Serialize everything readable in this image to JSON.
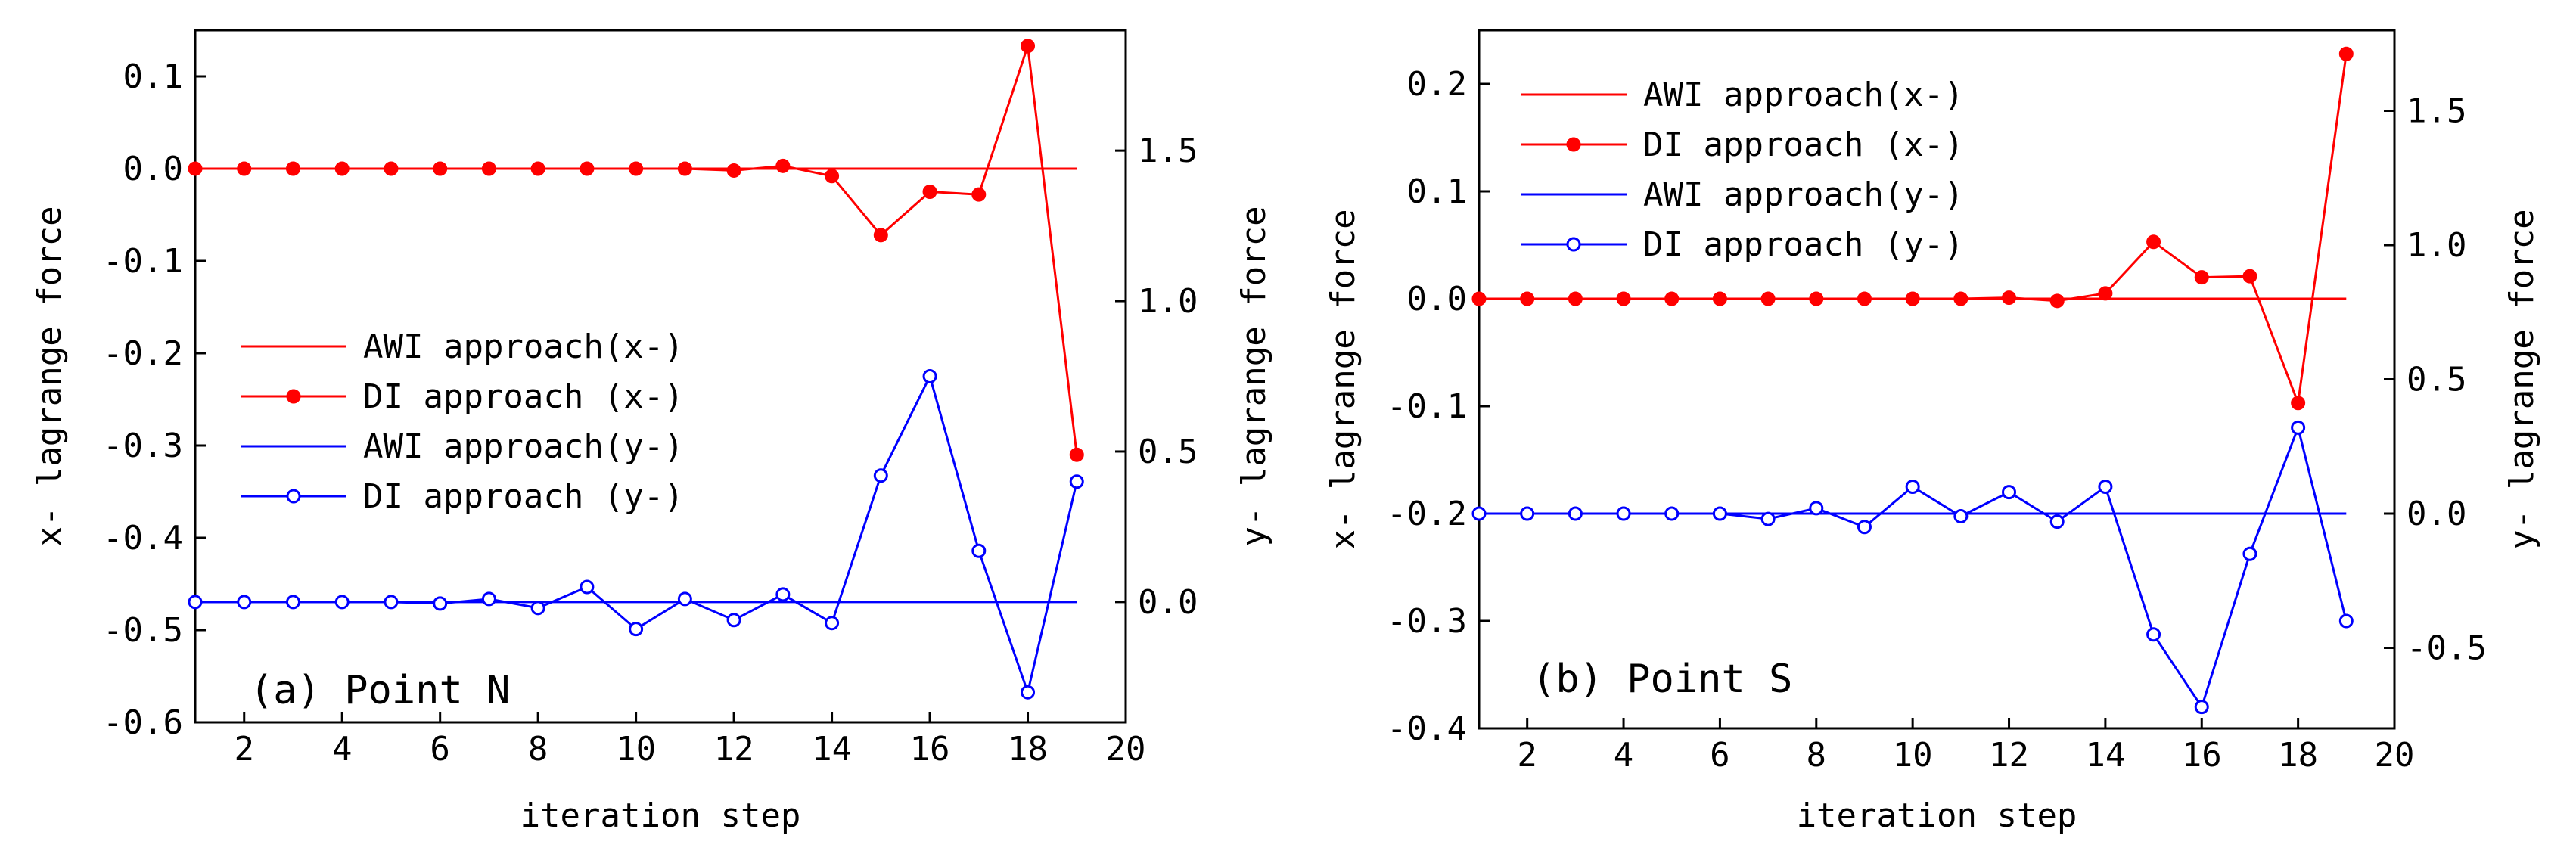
{
  "chart_data": [
    {
      "type": "line",
      "panel_label": "(a) Point N",
      "xlabel": "iteration step",
      "ylabel_left": "x- lagrange force",
      "ylabel_right": "y- lagrange force",
      "xlim": [
        1,
        20
      ],
      "ylim_left": [
        -0.6,
        0.15
      ],
      "ylim_right": [
        -0.4,
        1.9
      ],
      "xticks": [
        2,
        4,
        6,
        8,
        10,
        12,
        14,
        16,
        18,
        20
      ],
      "yticks_left": [
        "0.1",
        "0.0",
        "-0.1",
        "-0.2",
        "-0.3",
        "-0.4",
        "-0.5",
        "-0.6"
      ],
      "yticks_left_values": [
        0.1,
        0.0,
        -0.1,
        -0.2,
        -0.3,
        -0.4,
        -0.5,
        -0.6
      ],
      "yticks_right": [
        "1.5",
        "1.0",
        "0.5",
        "0.0"
      ],
      "yticks_right_values": [
        1.5,
        1.0,
        0.5,
        0.0
      ],
      "legend_position": "center-left",
      "series": [
        {
          "name": "AWI approach(x-)",
          "axis": "left",
          "color": "#ff0000",
          "marker": "none",
          "x": [
            1,
            19
          ],
          "values": [
            0.0,
            0.0
          ]
        },
        {
          "name": "DI approach (x-)",
          "axis": "left",
          "color": "#ff0000",
          "marker": "filled-circle",
          "x": [
            1,
            2,
            3,
            4,
            5,
            6,
            7,
            8,
            9,
            10,
            11,
            12,
            13,
            14,
            15,
            16,
            17,
            18,
            19
          ],
          "values": [
            0.0,
            0.0,
            0.0,
            0.0,
            0.0,
            0.0,
            0.0,
            0.0,
            0.0,
            0.0,
            0.0,
            -0.002,
            0.003,
            -0.008,
            -0.072,
            -0.025,
            -0.028,
            0.133,
            -0.31
          ]
        },
        {
          "name": "AWI approach(y-)",
          "axis": "right",
          "color": "#0000ff",
          "marker": "none",
          "x": [
            1,
            19
          ],
          "values": [
            0.0,
            0.0
          ]
        },
        {
          "name": "DI approach (y-)",
          "axis": "right",
          "color": "#0000ff",
          "marker": "open-circle",
          "x": [
            1,
            2,
            3,
            4,
            5,
            6,
            7,
            8,
            9,
            10,
            11,
            12,
            13,
            14,
            15,
            16,
            17,
            18,
            19
          ],
          "values": [
            0.0,
            0.0,
            0.0,
            0.0,
            0.0,
            -0.005,
            0.01,
            -0.02,
            0.05,
            -0.09,
            0.01,
            -0.06,
            0.025,
            -0.07,
            0.42,
            0.75,
            0.17,
            -0.3,
            0.4
          ]
        }
      ]
    },
    {
      "type": "line",
      "panel_label": "(b) Point S",
      "xlabel": "iteration step",
      "ylabel_left": "x- lagrange force",
      "ylabel_right": "y- lagrange force",
      "xlim": [
        1,
        20
      ],
      "ylim_left": [
        -0.4,
        0.25
      ],
      "ylim_right": [
        -0.8,
        1.8
      ],
      "xticks": [
        2,
        4,
        6,
        8,
        10,
        12,
        14,
        16,
        18,
        20
      ],
      "yticks_left": [
        "0.2",
        "0.1",
        "0.0",
        "-0.1",
        "-0.2",
        "-0.3",
        "-0.4"
      ],
      "yticks_left_values": [
        0.2,
        0.1,
        0.0,
        -0.1,
        -0.2,
        -0.3,
        -0.4
      ],
      "yticks_right": [
        "1.5",
        "1.0",
        "0.5",
        "0.0",
        "-0.5"
      ],
      "yticks_right_values": [
        1.5,
        1.0,
        0.5,
        0.0,
        -0.5
      ],
      "legend_position": "top-left",
      "series": [
        {
          "name": "AWI approach(x-)",
          "axis": "left",
          "color": "#ff0000",
          "marker": "none",
          "x": [
            1,
            19
          ],
          "values": [
            0.0,
            0.0
          ]
        },
        {
          "name": "DI approach (x-)",
          "axis": "left",
          "color": "#ff0000",
          "marker": "filled-circle",
          "x": [
            1,
            2,
            3,
            4,
            5,
            6,
            7,
            8,
            9,
            10,
            11,
            12,
            13,
            14,
            15,
            16,
            17,
            18,
            19
          ],
          "values": [
            0.0,
            0.0,
            0.0,
            0.0,
            0.0,
            0.0,
            0.0,
            0.0,
            0.0,
            0.0,
            0.0,
            0.001,
            -0.002,
            0.005,
            0.053,
            0.02,
            0.021,
            -0.097,
            0.228
          ]
        },
        {
          "name": "AWI approach(y-)",
          "axis": "right",
          "color": "#0000ff",
          "marker": "none",
          "x": [
            1,
            19
          ],
          "values": [
            0.0,
            0.0
          ]
        },
        {
          "name": "DI approach (y-)",
          "axis": "right",
          "color": "#0000ff",
          "marker": "open-circle",
          "x": [
            1,
            2,
            3,
            4,
            5,
            6,
            7,
            8,
            9,
            10,
            11,
            12,
            13,
            14,
            15,
            16,
            17,
            18,
            19
          ],
          "values": [
            0.0,
            0.0,
            0.0,
            0.0,
            0.0,
            0.0,
            -0.02,
            0.02,
            -0.05,
            0.1,
            -0.01,
            0.08,
            -0.03,
            0.1,
            -0.45,
            -0.72,
            -0.15,
            0.32,
            -0.4
          ]
        }
      ]
    }
  ]
}
